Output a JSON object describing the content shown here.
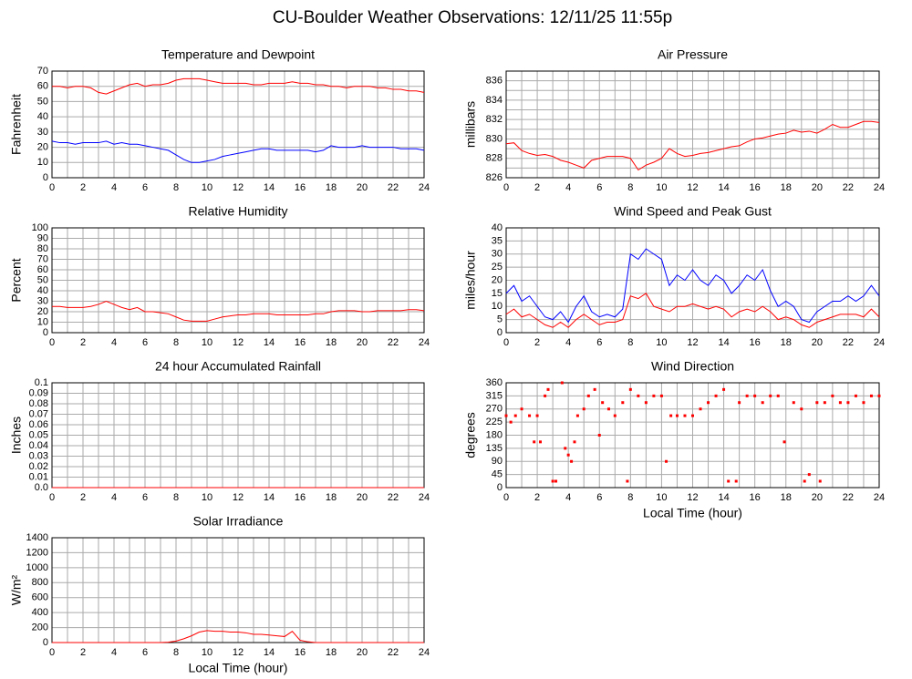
{
  "title": "CU-Boulder Weather Observations: 12/11/25 11:55p",
  "chart_data": [
    {
      "type": "line",
      "title": "Temperature and Dewpoint",
      "ylabel": "Fahrenheit",
      "x": [
        0,
        0.5,
        1,
        1.5,
        2,
        2.5,
        3,
        3.5,
        4,
        4.5,
        5,
        5.5,
        6,
        6.5,
        7,
        7.5,
        8,
        8.5,
        9,
        9.5,
        10,
        10.5,
        11,
        11.5,
        12,
        12.5,
        13,
        13.5,
        14,
        14.5,
        15,
        15.5,
        16,
        16.5,
        17,
        17.5,
        18,
        18.5,
        19,
        19.5,
        20,
        20.5,
        21,
        21.5,
        22,
        22.5,
        23,
        23.5,
        24
      ],
      "series": [
        {
          "color": "#ff0000",
          "values": [
            60,
            60,
            59,
            60,
            60,
            59,
            56,
            55,
            57,
            59,
            61,
            62,
            60,
            61,
            61,
            62,
            64,
            65,
            65,
            65,
            64,
            63,
            62,
            62,
            62,
            62,
            61,
            61,
            62,
            62,
            62,
            63,
            62,
            62,
            61,
            61,
            60,
            60,
            59,
            60,
            60,
            60,
            59,
            59,
            58,
            58,
            57,
            57,
            56
          ]
        },
        {
          "color": "#0000ff",
          "values": [
            24,
            23,
            23,
            22,
            23,
            23,
            23,
            24,
            22,
            23,
            22,
            22,
            21,
            20,
            19,
            18,
            15,
            12,
            10,
            10,
            11,
            12,
            14,
            15,
            16,
            17,
            18,
            19,
            19,
            18,
            18,
            18,
            18,
            18,
            17,
            18,
            21,
            20,
            20,
            20,
            21,
            20,
            20,
            20,
            20,
            19,
            19,
            19,
            18
          ]
        }
      ],
      "xlim": [
        0,
        24
      ],
      "xticks": [
        0,
        2,
        4,
        6,
        8,
        10,
        12,
        14,
        16,
        18,
        20,
        22,
        24
      ],
      "xminorticks": [
        1,
        3,
        5,
        7,
        9,
        11,
        13,
        15,
        17,
        19,
        21,
        23
      ],
      "ylim": [
        0,
        70
      ],
      "yticks": [
        0,
        10,
        20,
        30,
        40,
        50,
        60,
        70
      ],
      "grid": true
    },
    {
      "type": "line",
      "title": "Air Pressure",
      "ylabel": "millibars",
      "x": [
        0,
        0.5,
        1,
        1.5,
        2,
        2.5,
        3,
        3.5,
        4,
        4.5,
        5,
        5.5,
        6,
        6.5,
        7,
        7.5,
        8,
        8.5,
        9,
        9.5,
        10,
        10.5,
        11,
        11.5,
        12,
        12.5,
        13,
        13.5,
        14,
        14.5,
        15,
        15.5,
        16,
        16.5,
        17,
        17.5,
        18,
        18.5,
        19,
        19.5,
        20,
        20.5,
        21,
        21.5,
        22,
        22.5,
        23,
        23.5,
        24
      ],
      "series": [
        {
          "color": "#ff0000",
          "values": [
            829.5,
            829.6,
            828.8,
            828.5,
            828.3,
            828.4,
            828.2,
            827.8,
            827.6,
            827.3,
            827,
            827.8,
            828,
            828.2,
            828.2,
            828.2,
            828,
            826.8,
            827.3,
            827.6,
            828,
            829,
            828.5,
            828.2,
            828.3,
            828.5,
            828.6,
            828.8,
            829,
            829.2,
            829.3,
            829.7,
            830,
            830.1,
            830.3,
            830.5,
            830.6,
            830.9,
            830.7,
            830.8,
            830.6,
            831,
            831.5,
            831.2,
            831.2,
            831.5,
            831.8,
            831.8,
            831.7
          ]
        }
      ],
      "xlim": [
        0,
        24
      ],
      "xticks": [
        0,
        2,
        4,
        6,
        8,
        10,
        12,
        14,
        16,
        18,
        20,
        22,
        24
      ],
      "xminorticks": [
        1,
        3,
        5,
        7,
        9,
        11,
        13,
        15,
        17,
        19,
        21,
        23
      ],
      "ylim": [
        826,
        837
      ],
      "yticks": [
        826,
        828,
        830,
        832,
        834,
        836
      ],
      "yminorticks": [
        827,
        829,
        831,
        833,
        835
      ],
      "grid": true
    },
    {
      "type": "line",
      "title": "Relative Humidity",
      "ylabel": "Percent",
      "x": [
        0,
        0.5,
        1,
        1.5,
        2,
        2.5,
        3,
        3.5,
        4,
        4.5,
        5,
        5.5,
        6,
        6.5,
        7,
        7.5,
        8,
        8.5,
        9,
        9.5,
        10,
        10.5,
        11,
        11.5,
        12,
        12.5,
        13,
        13.5,
        14,
        14.5,
        15,
        15.5,
        16,
        16.5,
        17,
        17.5,
        18,
        18.5,
        19,
        19.5,
        20,
        20.5,
        21,
        21.5,
        22,
        22.5,
        23,
        23.5,
        24
      ],
      "series": [
        {
          "color": "#ff0000",
          "values": [
            25,
            25,
            24,
            24,
            24,
            25,
            27,
            30,
            27,
            24,
            22,
            24,
            20,
            20,
            19,
            18,
            15,
            12,
            11,
            11,
            11,
            13,
            15,
            16,
            17,
            17,
            18,
            18,
            18,
            17,
            17,
            17,
            17,
            17,
            18,
            18,
            20,
            21,
            21,
            21,
            20,
            20,
            21,
            21,
            21,
            21,
            22,
            22,
            21
          ]
        }
      ],
      "xlim": [
        0,
        24
      ],
      "xticks": [
        0,
        2,
        4,
        6,
        8,
        10,
        12,
        14,
        16,
        18,
        20,
        22,
        24
      ],
      "xminorticks": [
        1,
        3,
        5,
        7,
        9,
        11,
        13,
        15,
        17,
        19,
        21,
        23
      ],
      "ylim": [
        0,
        100
      ],
      "yticks": [
        0,
        10,
        20,
        30,
        40,
        50,
        60,
        70,
        80,
        90,
        100
      ],
      "grid": true
    },
    {
      "type": "line",
      "title": "Wind Speed and Peak Gust",
      "ylabel": "miles/hour",
      "x": [
        0,
        0.5,
        1,
        1.5,
        2,
        2.5,
        3,
        3.5,
        4,
        4.5,
        5,
        5.5,
        6,
        6.5,
        7,
        7.5,
        8,
        8.5,
        9,
        9.5,
        10,
        10.5,
        11,
        11.5,
        12,
        12.5,
        13,
        13.5,
        14,
        14.5,
        15,
        15.5,
        16,
        16.5,
        17,
        17.5,
        18,
        18.5,
        19,
        19.5,
        20,
        20.5,
        21,
        21.5,
        22,
        22.5,
        23,
        23.5,
        24
      ],
      "series": [
        {
          "color": "#0000ff",
          "values": [
            15,
            18,
            12,
            14,
            10,
            6,
            5,
            8,
            4,
            10,
            14,
            8,
            6,
            7,
            6,
            9,
            30,
            28,
            32,
            30,
            28,
            18,
            22,
            20,
            24,
            20,
            18,
            22,
            20,
            15,
            18,
            22,
            20,
            24,
            16,
            10,
            12,
            10,
            5,
            4,
            8,
            10,
            12,
            12,
            14,
            12,
            14,
            18,
            14
          ]
        },
        {
          "color": "#ff0000",
          "values": [
            7,
            9,
            6,
            7,
            5,
            3,
            2,
            4,
            2,
            5,
            7,
            5,
            3,
            4,
            4,
            5,
            14,
            13,
            15,
            10,
            9,
            8,
            10,
            10,
            11,
            10,
            9,
            10,
            9,
            6,
            8,
            9,
            8,
            10,
            8,
            5,
            6,
            5,
            3,
            2,
            4,
            5,
            6,
            7,
            7,
            7,
            6,
            9,
            6
          ]
        }
      ],
      "xlim": [
        0,
        24
      ],
      "xticks": [
        0,
        2,
        4,
        6,
        8,
        10,
        12,
        14,
        16,
        18,
        20,
        22,
        24
      ],
      "xminorticks": [
        1,
        3,
        5,
        7,
        9,
        11,
        13,
        15,
        17,
        19,
        21,
        23
      ],
      "ylim": [
        0,
        40
      ],
      "yticks": [
        0,
        5,
        10,
        15,
        20,
        25,
        30,
        35,
        40
      ],
      "grid": true
    },
    {
      "type": "line",
      "title": "24 hour Accumulated Rainfall",
      "ylabel": "Inches",
      "x": [
        0,
        24
      ],
      "series": [
        {
          "color": "#ff0000",
          "values": [
            0,
            0
          ]
        }
      ],
      "xlim": [
        0,
        24
      ],
      "xticks": [
        0,
        2,
        4,
        6,
        8,
        10,
        12,
        14,
        16,
        18,
        20,
        22,
        24
      ],
      "xminorticks": [
        1,
        3,
        5,
        7,
        9,
        11,
        13,
        15,
        17,
        19,
        21,
        23
      ],
      "ylim": [
        0,
        0.1
      ],
      "yticks": [
        {
          "value": 0,
          "label": "0.0"
        },
        0.01,
        0.02,
        0.03,
        0.04,
        0.05,
        0.06,
        0.07,
        0.08,
        0.09,
        0.1
      ],
      "grid": true
    },
    {
      "type": "scatter",
      "title": "Wind Direction",
      "ylabel": "degrees",
      "xlabel": "Local Time (hour)",
      "x": [
        0,
        0.3,
        0.6,
        1,
        1.5,
        1.8,
        2,
        2.2,
        2.5,
        2.7,
        3,
        3.2,
        3.6,
        3.8,
        4,
        4.2,
        4.4,
        4.6,
        5,
        5.3,
        5.7,
        6,
        6.2,
        6.6,
        7,
        7.5,
        7.8,
        8,
        8.5,
        9,
        9.5,
        10,
        10.3,
        10.6,
        11,
        11.5,
        12,
        12.5,
        13,
        13.5,
        14,
        14.3,
        14.8,
        15,
        15.5,
        16,
        16.5,
        17,
        17.5,
        17.9,
        18.5,
        19,
        19.2,
        19.5,
        20,
        20.2,
        20.5,
        21,
        21.5,
        22,
        22.5,
        23,
        23.5,
        24
      ],
      "series": [
        {
          "color": "#ff0000",
          "values": [
            247,
            225,
            247,
            270,
            247,
            157,
            247,
            157,
            315,
            337,
            22,
            22,
            360,
            135,
            112,
            90,
            157,
            247,
            270,
            315,
            337,
            180,
            292,
            270,
            247,
            292,
            22,
            337,
            315,
            292,
            315,
            315,
            90,
            247,
            247,
            247,
            247,
            270,
            292,
            315,
            337,
            22,
            22,
            292,
            315,
            315,
            292,
            315,
            315,
            157,
            292,
            270,
            22,
            45,
            292,
            22,
            292,
            315,
            292,
            292,
            315,
            292,
            315,
            315
          ]
        }
      ],
      "xlim": [
        0,
        24
      ],
      "xticks": [
        0,
        2,
        4,
        6,
        8,
        10,
        12,
        14,
        16,
        18,
        20,
        22,
        24
      ],
      "xminorticks": [
        1,
        3,
        5,
        7,
        9,
        11,
        13,
        15,
        17,
        19,
        21,
        23
      ],
      "ylim": [
        0,
        360
      ],
      "yticks": [
        0,
        45,
        90,
        135,
        180,
        225,
        270,
        315,
        360
      ],
      "grid": true
    },
    {
      "type": "line",
      "title": "Solar Irradiance",
      "ylabel": "W/m²",
      "xlabel": "Local Time (hour)",
      "x": [
        0,
        0.5,
        1,
        1.5,
        2,
        2.5,
        3,
        3.5,
        4,
        4.5,
        5,
        5.5,
        6,
        6.5,
        7,
        7.5,
        8,
        8.5,
        9,
        9.5,
        10,
        10.5,
        11,
        11.5,
        12,
        12.5,
        13,
        13.5,
        14,
        14.5,
        15,
        15.5,
        16,
        16.5,
        17,
        17.5,
        18,
        18.5,
        19,
        19.5,
        20,
        20.5,
        21,
        21.5,
        22,
        22.5,
        23,
        23.5,
        24
      ],
      "series": [
        {
          "color": "#ff0000",
          "values": [
            0,
            0,
            0,
            0,
            0,
            0,
            0,
            0,
            0,
            0,
            0,
            0,
            0,
            0,
            0,
            5,
            20,
            50,
            90,
            140,
            160,
            150,
            150,
            140,
            140,
            130,
            110,
            110,
            100,
            90,
            80,
            150,
            30,
            10,
            0,
            0,
            0,
            0,
            0,
            0,
            0,
            0,
            0,
            0,
            0,
            0,
            0,
            0,
            0
          ]
        }
      ],
      "xlim": [
        0,
        24
      ],
      "xticks": [
        0,
        2,
        4,
        6,
        8,
        10,
        12,
        14,
        16,
        18,
        20,
        22,
        24
      ],
      "xminorticks": [
        1,
        3,
        5,
        7,
        9,
        11,
        13,
        15,
        17,
        19,
        21,
        23
      ],
      "ylim": [
        0,
        1400
      ],
      "yticks": [
        0,
        200,
        400,
        600,
        800,
        1000,
        1200,
        1400
      ],
      "grid": true
    }
  ]
}
